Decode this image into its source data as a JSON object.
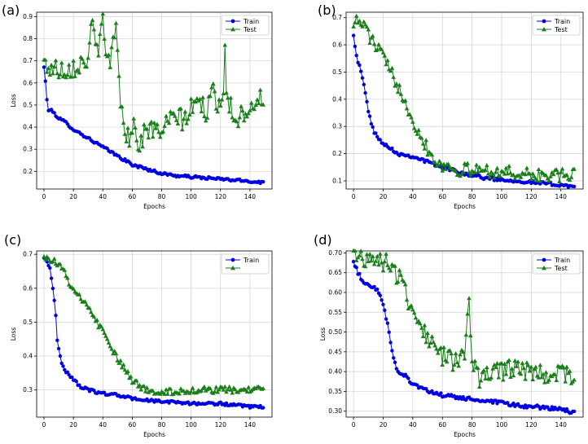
{
  "chart_data": [
    {
      "panel": "(a)",
      "type": "line",
      "xlabel": "Epochs",
      "ylabel": "Loss",
      "xlim": [
        -5,
        155
      ],
      "ylim": [
        0.12,
        0.92
      ],
      "xticks": [
        0,
        20,
        40,
        60,
        80,
        100,
        120,
        140
      ],
      "yticks": [
        0.2,
        0.3,
        0.4,
        0.5,
        0.6,
        0.7,
        0.8,
        0.9
      ],
      "grid": true,
      "legend_position": "top-right",
      "series": [
        {
          "name": "Train",
          "color": "#0000e0",
          "marker": "circle",
          "anchors": [
            [
              0,
              0.67
            ],
            [
              1,
              0.61
            ],
            [
              2,
              0.52
            ],
            [
              3,
              0.48
            ],
            [
              6,
              0.47
            ],
            [
              10,
              0.44
            ],
            [
              15,
              0.42
            ],
            [
              20,
              0.39
            ],
            [
              25,
              0.37
            ],
            [
              30,
              0.35
            ],
            [
              35,
              0.33
            ],
            [
              40,
              0.31
            ],
            [
              45,
              0.29
            ],
            [
              50,
              0.27
            ],
            [
              55,
              0.25
            ],
            [
              60,
              0.23
            ],
            [
              65,
              0.22
            ],
            [
              70,
              0.21
            ],
            [
              75,
              0.2
            ],
            [
              80,
              0.19
            ],
            [
              90,
              0.18
            ],
            [
              100,
              0.175
            ],
            [
              110,
              0.17
            ],
            [
              120,
              0.165
            ],
            [
              130,
              0.16
            ],
            [
              140,
              0.155
            ],
            [
              149,
              0.15
            ]
          ],
          "noise": 0.006
        },
        {
          "name": "Test",
          "color": "#1a7f1a",
          "marker": "triangle",
          "anchors": [
            [
              0,
              0.69
            ],
            [
              5,
              0.665
            ],
            [
              10,
              0.665
            ],
            [
              15,
              0.665
            ],
            [
              20,
              0.675
            ],
            [
              25,
              0.69
            ],
            [
              28,
              0.7
            ],
            [
              30,
              0.72
            ],
            [
              33,
              0.87
            ],
            [
              35,
              0.76
            ],
            [
              38,
              0.78
            ],
            [
              40,
              0.87
            ],
            [
              42,
              0.72
            ],
            [
              45,
              0.7
            ],
            [
              47,
              0.83
            ],
            [
              49,
              0.84
            ],
            [
              51,
              0.62
            ],
            [
              53,
              0.45
            ],
            [
              55,
              0.4
            ],
            [
              58,
              0.35
            ],
            [
              60,
              0.42
            ],
            [
              63,
              0.36
            ],
            [
              65,
              0.32
            ],
            [
              70,
              0.4
            ],
            [
              75,
              0.38
            ],
            [
              80,
              0.39
            ],
            [
              85,
              0.42
            ],
            [
              90,
              0.45
            ],
            [
              95,
              0.43
            ],
            [
              100,
              0.48
            ],
            [
              105,
              0.52
            ],
            [
              110,
              0.47
            ],
            [
              115,
              0.55
            ],
            [
              120,
              0.5
            ],
            [
              122,
              0.57
            ],
            [
              123,
              0.77
            ],
            [
              124,
              0.6
            ],
            [
              126,
              0.5
            ],
            [
              130,
              0.44
            ],
            [
              135,
              0.46
            ],
            [
              140,
              0.5
            ],
            [
              145,
              0.52
            ],
            [
              149,
              0.53
            ]
          ],
          "noise": 0.05
        }
      ]
    },
    {
      "panel": "(b)",
      "type": "line",
      "xlabel": "Epochs",
      "ylabel": "",
      "xlim": [
        -5,
        155
      ],
      "ylim": [
        0.07,
        0.72
      ],
      "xticks": [
        0,
        20,
        40,
        60,
        80,
        100,
        120,
        140
      ],
      "yticks": [
        0.1,
        0.2,
        0.3,
        0.4,
        0.5,
        0.6,
        0.7
      ],
      "grid": true,
      "legend_position": "top-right",
      "series": [
        {
          "name": "Train",
          "color": "#0000e0",
          "marker": "circle",
          "anchors": [
            [
              0,
              0.64
            ],
            [
              2,
              0.56
            ],
            [
              4,
              0.52
            ],
            [
              6,
              0.48
            ],
            [
              8,
              0.42
            ],
            [
              10,
              0.36
            ],
            [
              12,
              0.31
            ],
            [
              14,
              0.28
            ],
            [
              16,
              0.26
            ],
            [
              20,
              0.24
            ],
            [
              25,
              0.22
            ],
            [
              30,
              0.2
            ],
            [
              40,
              0.19
            ],
            [
              50,
              0.17
            ],
            [
              60,
              0.15
            ],
            [
              70,
              0.135
            ],
            [
              80,
              0.12
            ],
            [
              90,
              0.11
            ],
            [
              100,
              0.105
            ],
            [
              110,
              0.1
            ],
            [
              120,
              0.095
            ],
            [
              130,
              0.09
            ],
            [
              140,
              0.085
            ],
            [
              149,
              0.08
            ]
          ],
          "noise": 0.006
        },
        {
          "name": "Test",
          "color": "#1a7f1a",
          "marker": "triangle",
          "anchors": [
            [
              0,
              0.69
            ],
            [
              5,
              0.68
            ],
            [
              8,
              0.67
            ],
            [
              10,
              0.64
            ],
            [
              14,
              0.6
            ],
            [
              18,
              0.58
            ],
            [
              22,
              0.53
            ],
            [
              26,
              0.49
            ],
            [
              30,
              0.45
            ],
            [
              35,
              0.4
            ],
            [
              40,
              0.32
            ],
            [
              44,
              0.28
            ],
            [
              48,
              0.24
            ],
            [
              52,
              0.2
            ],
            [
              56,
              0.17
            ],
            [
              60,
              0.16
            ],
            [
              65,
              0.15
            ],
            [
              70,
              0.14
            ],
            [
              80,
              0.14
            ],
            [
              90,
              0.14
            ],
            [
              100,
              0.13
            ],
            [
              110,
              0.13
            ],
            [
              120,
              0.12
            ],
            [
              130,
              0.12
            ],
            [
              140,
              0.12
            ],
            [
              149,
              0.12
            ]
          ],
          "noise": 0.025
        }
      ]
    },
    {
      "panel": "(c)",
      "type": "line",
      "xlabel": "Epochs",
      "ylabel": "Loss",
      "xlim": [
        -5,
        155
      ],
      "ylim": [
        0.22,
        0.71
      ],
      "xticks": [
        0,
        20,
        40,
        60,
        80,
        100,
        120,
        140
      ],
      "yticks": [
        0.3,
        0.4,
        0.5,
        0.6,
        0.7
      ],
      "grid": true,
      "legend_position": "top-right",
      "series": [
        {
          "name": "Train",
          "color": "#0000e0",
          "marker": "circle",
          "anchors": [
            [
              0,
              0.69
            ],
            [
              2,
              0.68
            ],
            [
              4,
              0.66
            ],
            [
              6,
              0.6
            ],
            [
              8,
              0.52
            ],
            [
              9,
              0.45
            ],
            [
              10,
              0.42
            ],
            [
              12,
              0.38
            ],
            [
              14,
              0.36
            ],
            [
              16,
              0.35
            ],
            [
              20,
              0.33
            ],
            [
              25,
              0.31
            ],
            [
              30,
              0.3
            ],
            [
              40,
              0.29
            ],
            [
              50,
              0.285
            ],
            [
              60,
              0.275
            ],
            [
              70,
              0.27
            ],
            [
              80,
              0.265
            ],
            [
              90,
              0.265
            ],
            [
              100,
              0.26
            ],
            [
              110,
              0.26
            ],
            [
              120,
              0.26
            ],
            [
              130,
              0.255
            ],
            [
              140,
              0.25
            ],
            [
              149,
              0.25
            ]
          ],
          "noise": 0.004
        },
        {
          "name": "",
          "color": "#1a7f1a",
          "marker": "triangle",
          "anchors": [
            [
              0,
              0.695
            ],
            [
              5,
              0.685
            ],
            [
              10,
              0.67
            ],
            [
              15,
              0.64
            ],
            [
              20,
              0.59
            ],
            [
              25,
              0.57
            ],
            [
              30,
              0.54
            ],
            [
              35,
              0.51
            ],
            [
              40,
              0.47
            ],
            [
              45,
              0.43
            ],
            [
              50,
              0.39
            ],
            [
              55,
              0.36
            ],
            [
              60,
              0.33
            ],
            [
              65,
              0.31
            ],
            [
              70,
              0.3
            ],
            [
              80,
              0.295
            ],
            [
              90,
              0.295
            ],
            [
              100,
              0.3
            ],
            [
              110,
              0.3
            ],
            [
              120,
              0.3
            ],
            [
              130,
              0.3
            ],
            [
              140,
              0.3
            ],
            [
              149,
              0.3
            ]
          ],
          "noise": 0.01
        }
      ]
    },
    {
      "panel": "(d)",
      "type": "line",
      "xlabel": "Epochs",
      "ylabel": "Loss",
      "xlim": [
        -5,
        155
      ],
      "ylim": [
        0.285,
        0.705
      ],
      "xticks": [
        0,
        20,
        40,
        60,
        80,
        100,
        120,
        140
      ],
      "yticks": [
        0.3,
        0.35,
        0.4,
        0.45,
        0.5,
        0.55,
        0.6,
        0.65,
        0.7
      ],
      "grid": true,
      "legend_position": "top-right",
      "series": [
        {
          "name": "Train",
          "color": "#0000e0",
          "marker": "circle",
          "anchors": [
            [
              0,
              0.675
            ],
            [
              3,
              0.65
            ],
            [
              6,
              0.63
            ],
            [
              10,
              0.62
            ],
            [
              15,
              0.61
            ],
            [
              18,
              0.59
            ],
            [
              20,
              0.57
            ],
            [
              23,
              0.52
            ],
            [
              25,
              0.47
            ],
            [
              28,
              0.42
            ],
            [
              30,
              0.4
            ],
            [
              35,
              0.39
            ],
            [
              40,
              0.37
            ],
            [
              45,
              0.36
            ],
            [
              50,
              0.35
            ],
            [
              60,
              0.34
            ],
            [
              70,
              0.335
            ],
            [
              80,
              0.33
            ],
            [
              90,
              0.325
            ],
            [
              100,
              0.32
            ],
            [
              110,
              0.315
            ],
            [
              120,
              0.31
            ],
            [
              130,
              0.31
            ],
            [
              140,
              0.305
            ],
            [
              149,
              0.295
            ]
          ],
          "noise": 0.005
        },
        {
          "name": "Test",
          "color": "#1a7f1a",
          "marker": "triangle",
          "anchors": [
            [
              0,
              0.69
            ],
            [
              10,
              0.69
            ],
            [
              20,
              0.68
            ],
            [
              25,
              0.67
            ],
            [
              30,
              0.64
            ],
            [
              35,
              0.6
            ],
            [
              40,
              0.56
            ],
            [
              45,
              0.52
            ],
            [
              50,
              0.49
            ],
            [
              55,
              0.46
            ],
            [
              60,
              0.44
            ],
            [
              65,
              0.43
            ],
            [
              70,
              0.42
            ],
            [
              75,
              0.45
            ],
            [
              78,
              0.6
            ],
            [
              80,
              0.42
            ],
            [
              85,
              0.38
            ],
            [
              90,
              0.39
            ],
            [
              100,
              0.4
            ],
            [
              110,
              0.41
            ],
            [
              120,
              0.4
            ],
            [
              125,
              0.4
            ],
            [
              130,
              0.39
            ],
            [
              140,
              0.4
            ],
            [
              149,
              0.38
            ]
          ],
          "noise": 0.025
        }
      ]
    }
  ]
}
